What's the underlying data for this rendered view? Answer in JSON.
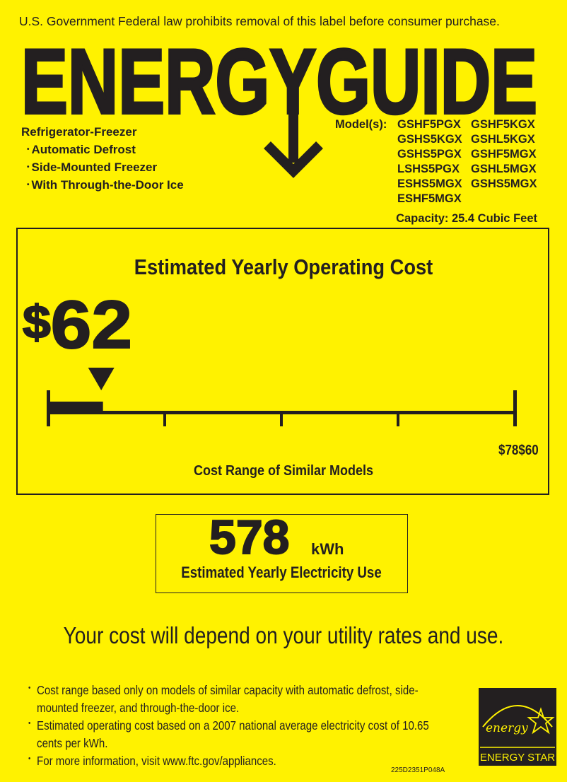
{
  "notice": "U.S. Government Federal law prohibits removal of this label before consumer purchase.",
  "title": "ENERGYGUIDE",
  "product": {
    "type": "Refrigerator-Freezer",
    "features": [
      "Automatic Defrost",
      "Side-Mounted Freezer",
      "With Through-the-Door Ice"
    ]
  },
  "models": {
    "label": "Model(s):",
    "list": [
      "GSHF5PGX",
      "GSHF5KGX",
      "GSHS5KGX",
      "GSHL5KGX",
      "GSHS5PGX",
      "GSHF5MGX",
      "LSHS5PGX",
      "GSHL5MGX",
      "ESHS5MGX",
      "GSHS5MGX",
      "ESHF5MGX"
    ]
  },
  "capacity": "Capacity: 25.4 Cubic Feet",
  "cost": {
    "title": "Estimated Yearly Operating Cost",
    "currency": "$",
    "value": "62",
    "scale_labels": "$78$60",
    "range_label": "Cost Range of Similar Models",
    "indicator_fraction": 0.115
  },
  "electricity": {
    "value": "578",
    "unit": "kWh",
    "label": "Estimated Yearly Electricity Use"
  },
  "depend_text": "Your cost will depend on your utility rates and use.",
  "notes": [
    "Cost range based only on models of similar capacity with automatic defrost, side-mounted freezer, and through-the-door ice.",
    "Estimated operating cost based on a 2007 national average electricity cost of 10.65 cents per kWh.",
    "For more information, visit www.ftc.gov/appliances."
  ],
  "label_code": "225D2351P048A",
  "energy_star": {
    "script": "energy",
    "text": "ENERGY STAR"
  },
  "colors": {
    "background": "#fff200",
    "ink": "#231f20"
  }
}
